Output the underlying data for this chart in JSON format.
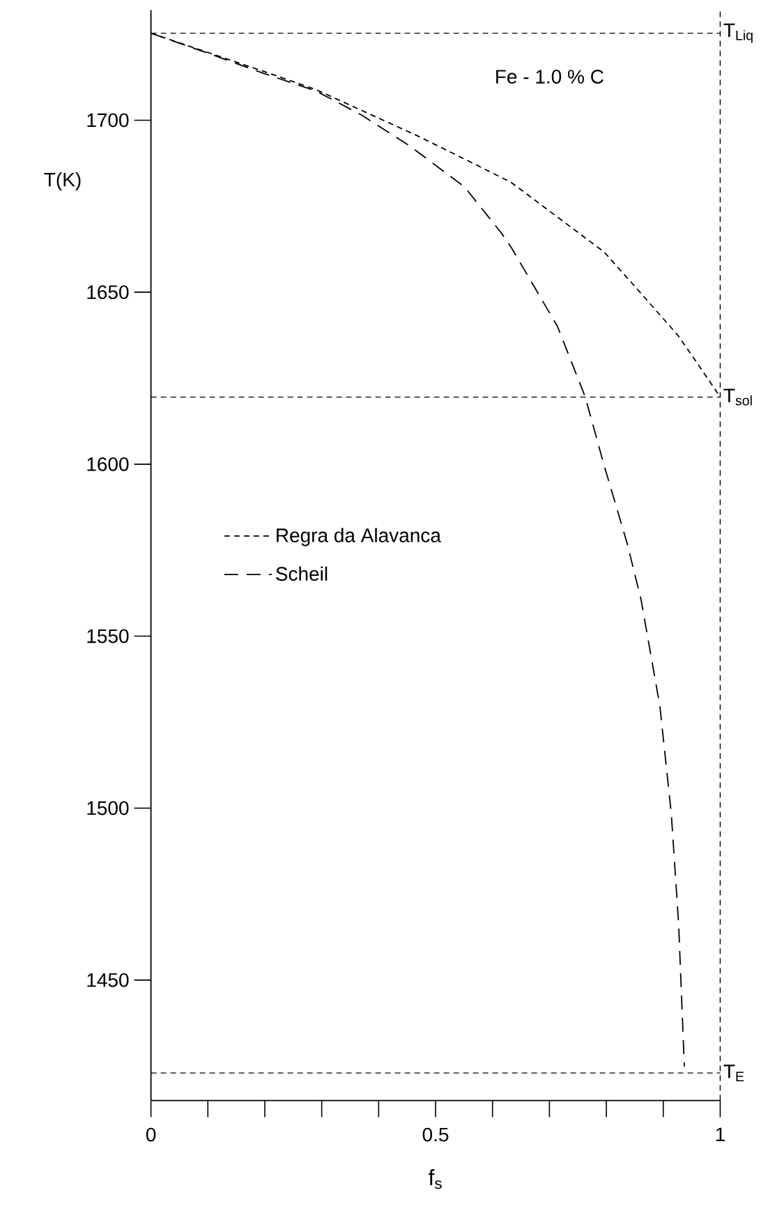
{
  "chart_data": {
    "type": "line",
    "xlabel": "f$_{s}$",
    "ylabel": "T(K)",
    "x": [
      0,
      0.1,
      0.2,
      0.29,
      0.4,
      0.469,
      0.551,
      0.633,
      0.7,
      0.796,
      0.85,
      0.926,
      0.96,
      0.996,
      1.0
    ],
    "series": [
      {
        "name": "Regra da Alavanca",
        "color": "#000000",
        "line_style": "dashed",
        "values": [
          1725.3,
          1719.7,
          1714.1,
          1708.9,
          1700.6,
          1695.4,
          1688.7,
          1681.9,
          1673.6,
          1661.7,
          1651.7,
          1637.4,
          1629.3,
          1620.5,
          1619.5
        ]
      },
      {
        "name": "Scheil",
        "color": "#000000",
        "line_style": "dashed",
        "x": [
          0,
          0.1,
          0.2,
          0.29,
          0.37,
          0.453,
          0.551,
          0.616,
          0.633,
          0.714,
          0.763,
          0.796,
          0.837,
          0.861,
          0.894,
          0.914,
          0.927,
          0.937
        ],
        "values": [
          1725.3,
          1719.5,
          1713.5,
          1708.5,
          1701.5,
          1692.7,
          1680.6,
          1667.1,
          1663.0,
          1640.1,
          1619.5,
          1599.7,
          1576.7,
          1560.6,
          1529.7,
          1498.6,
          1466.3,
          1424.9
        ]
      }
    ],
    "xlim": [
      0,
      1
    ],
    "ylim": [
      1415,
      1732
    ],
    "xticks": [
      0,
      {
        "value": 0.1,
        "label": null
      },
      {
        "value": 0.2,
        "label": null
      },
      {
        "value": 0.3,
        "label": null
      },
      {
        "value": 0.4,
        "label": null
      },
      0.5,
      {
        "value": 0.6,
        "label": null
      },
      {
        "value": 0.7,
        "label": null
      },
      {
        "value": 0.8,
        "label": null
      },
      {
        "value": 0.9,
        "label": null
      },
      1
    ],
    "yticks": [
      1450,
      1500,
      1550,
      1600,
      1650,
      1700
    ],
    "ref_lines": [
      {
        "axis": "y",
        "value": 1725.3,
        "label": "T$_{Liq}$",
        "line_style": "dashed"
      },
      {
        "axis": "y",
        "value": 1619.5,
        "label": "T$_{sol}$",
        "line_style": "dashed"
      },
      {
        "axis": "y",
        "value": 1423,
        "label": "T$_{E}$",
        "line_style": "dashed"
      },
      {
        "axis": "x",
        "value": 1,
        "line_style": "dashed"
      }
    ],
    "annotations": [
      "Fe - 1.0 % C"
    ],
    "legend": "left",
    "grid": false,
    "marker": "none"
  }
}
